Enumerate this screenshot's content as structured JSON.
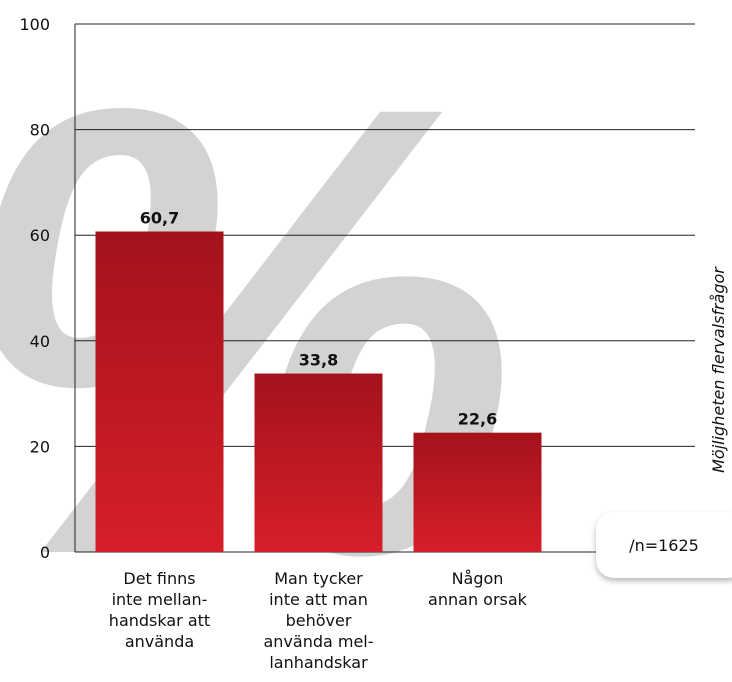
{
  "chart_data": {
    "type": "bar",
    "watermark": "%",
    "side_label": "Möjligheten flervalsfrågor",
    "note": "/n=1625",
    "categories": [
      [
        "Det finns",
        "inte mellan-",
        "handskar att",
        "använda"
      ],
      [
        "Man tycker",
        "inte att man",
        "behöver",
        "använda mel-",
        "lanhandskar"
      ],
      [
        "Någon",
        "annan orsak"
      ]
    ],
    "values": [
      60.7,
      33.8,
      22.6
    ],
    "value_labels": [
      "60,7",
      "33,8",
      "22,6"
    ],
    "color": "#c8161e",
    "ylim": [
      0,
      100
    ],
    "yticks": [
      0,
      20,
      40,
      60,
      80,
      100
    ],
    "grid": true
  }
}
